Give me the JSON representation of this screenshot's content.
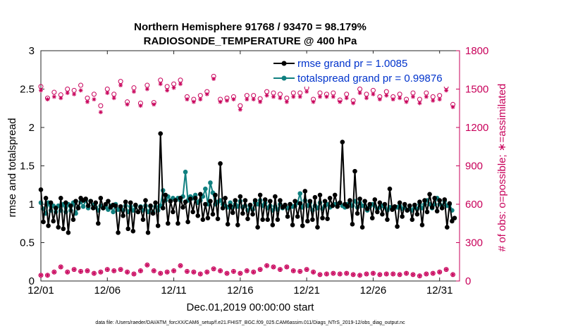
{
  "chart_data": {
    "type": "line",
    "title": [
      "Northern Hemisphere 91768 / 93470 = 98.179%",
      "RADIOSONDE_TEMPERATURE @ 400 hPa"
    ],
    "xlabel": "Dec.01,2019 00:00:00 start",
    "ylabel_left": "rmse and totalspread",
    "ylabel_right": "# of obs: o=possible; ∗=assimilated",
    "xlim": [
      0,
      31.5
    ],
    "ylim_left": [
      0,
      3
    ],
    "ylim_right": [
      0,
      1800
    ],
    "x_ticks": [
      0,
      5,
      10,
      15,
      20,
      25,
      30
    ],
    "x_tick_labels": [
      "12/01",
      "12/06",
      "12/11",
      "12/16",
      "12/21",
      "12/26",
      "12/31"
    ],
    "y_ticks_left": [
      0,
      0.5,
      1,
      1.5,
      2,
      2.5,
      3
    ],
    "y_tick_labels_left": [
      "0",
      "0.5",
      "1",
      "1.5",
      "2",
      "2.5",
      "3"
    ],
    "y_ticks_right": [
      0,
      300,
      600,
      900,
      1200,
      1500,
      1800
    ],
    "y_tick_labels_right": [
      "0",
      "300",
      "600",
      "900",
      "1200",
      "1500",
      "1800"
    ],
    "legend_position": "top-right",
    "colors": {
      "rmse": "#000000",
      "spread": "#108080",
      "obs": "#c8005a",
      "legend_text": "#0033cc",
      "axis": "#262626"
    },
    "series": [
      {
        "name": "rmse",
        "legend_label": "rmse grand pr = 1.0085",
        "axis": "left",
        "values": [
          1.19,
          0.77,
          1.08,
          0.72,
          1.02,
          0.78,
          0.95,
          0.7,
          1.08,
          0.68,
          1.02,
          0.63,
          0.98,
          0.8,
          1.04,
          0.95,
          1.08,
          1.05,
          1.07,
          0.98,
          1.04,
          0.95,
          1.02,
          0.75,
          1.08,
          0.95,
          1.0,
          1.04,
          0.96,
          0.99,
          0.98,
          0.63,
          0.97,
          0.85,
          1.03,
          0.68,
          1.02,
          0.65,
          0.99,
          0.9,
          0.96,
          0.8,
          1.05,
          0.63,
          0.98,
          0.88,
          1.02,
          0.72,
          1.92,
          0.95,
          1.12,
          0.75,
          1.04,
          0.9,
          1.05,
          0.75,
          1.08,
          0.96,
          1.03,
          0.77,
          1.07,
          0.9,
          1.08,
          0.85,
          1.13,
          0.8,
          1.0,
          0.82,
          1.04,
          0.87,
          1.12,
          0.81,
          1.53,
          0.95,
          1.08,
          0.74,
          0.98,
          0.89,
          1.05,
          0.73,
          1.1,
          0.88,
          1.05,
          0.81,
          0.99,
          0.87,
          1.05,
          0.7,
          1.12,
          0.8,
          1.06,
          0.8,
          1.04,
          0.73,
          1.1,
          0.8,
          1.05,
          0.96,
          0.99,
          0.84,
          1.0,
          0.73,
          1.04,
          0.84,
          1.01,
          0.72,
          1.17,
          0.78,
          1.04,
          0.8,
          1.09,
          0.7,
          1.12,
          0.82,
          1.04,
          0.81,
          1.08,
          0.98,
          1.12,
          0.97,
          1.02,
          1.81,
          1.0,
          0.97,
          1.05,
          0.74,
          1.43,
          0.88,
          1.07,
          0.7,
          1.04,
          0.94,
          1.0,
          0.82,
          1.06,
          0.9,
          1.02,
          0.87,
          1.0,
          0.8,
          1.2,
          0.93,
          0.97,
          0.71,
          1.02,
          0.84,
          1.0,
          0.92,
          0.98,
          0.8,
          0.99,
          0.87,
          1.03,
          0.73,
          1.05,
          0.9,
          1.13,
          0.96,
          1.08,
          0.91,
          1.05,
          0.95,
          1.06,
          0.7,
          1.01,
          0.78,
          0.82
        ]
      },
      {
        "name": "totalspread",
        "legend_label": "totalspread grand pr = 0.99876",
        "axis": "left",
        "values": [
          1.02,
          0.94,
          0.88,
          1.02,
          0.92,
          0.98,
          0.9,
          0.98,
          0.92,
          1.0,
          0.9,
          1.0,
          0.92,
          1.02,
          0.88,
          0.96,
          1.03,
          0.97,
          1.05,
          0.95,
          1.04,
          0.99,
          0.96,
          0.92,
          0.98,
          0.95,
          0.97,
          0.93,
          0.98,
          0.9,
          1.0,
          0.93,
          0.95,
          0.92,
          0.98,
          0.9,
          0.97,
          0.92,
          0.98,
          0.9,
          0.97,
          0.92,
          0.98,
          0.9,
          0.97,
          0.9,
          0.97,
          0.92,
          0.98,
          1.18,
          1.05,
          1.1,
          1.05,
          1.08,
          1.05,
          1.08,
          1.05,
          1.1,
          1.42,
          1.05,
          1.1,
          1.08,
          1.12,
          1.02,
          1.05,
          1.1,
          1.2,
          1.0,
          1.28,
          1.15,
          1.0,
          1.03,
          1.05,
          1.0,
          0.98,
          0.96,
          1.02,
          0.96,
          1.0,
          0.97,
          1.04,
          0.96,
          0.98,
          0.92,
          0.97,
          0.93,
          1.02,
          1.0,
          1.05,
          0.98,
          1.02,
          0.95,
          0.98,
          0.92,
          0.97,
          0.93,
          1.0,
          0.95,
          0.98,
          0.95,
          1.0,
          0.97,
          0.98,
          1.02,
          1.14,
          0.96,
          1.05,
          0.98,
          1.02,
          0.92,
          0.98,
          0.95,
          1.02,
          0.94,
          0.98,
          1.0,
          0.96,
          0.98,
          1.0,
          1.0,
          1.02,
          0.98,
          0.96,
          1.0,
          1.02,
          0.98,
          1.04,
          0.96,
          1.02,
          0.98,
          0.98,
          0.92,
          0.97,
          1.0,
          0.98,
          0.94,
          0.96,
          0.98,
          0.96,
          0.92,
          0.96,
          0.94,
          0.96,
          0.96,
          0.98,
          0.94,
          0.96,
          0.92,
          0.94,
          0.92,
          0.96,
          0.94,
          1.0,
          0.95,
          1.0,
          1.05,
          1.0,
          0.95,
          1.0,
          1.08,
          1.0,
          0.98,
          1.04,
          0.98,
          1.0,
          0.92
        ]
      },
      {
        "name": "obs_possible_high",
        "legend_label": "",
        "axis": "right",
        "marker": "o",
        "x": [
          0,
          0.5,
          1,
          1.5,
          2,
          2.5,
          3,
          3.5,
          4,
          4.5,
          5,
          5.5,
          6,
          6.5,
          7,
          7.5,
          8,
          8.5,
          9,
          9.5,
          10,
          10.5,
          11,
          11.5,
          12,
          12.5,
          13,
          13.5,
          14,
          14.5,
          15,
          15.5,
          16,
          16.5,
          17,
          17.5,
          18,
          18.5,
          19,
          19.5,
          20,
          20.5,
          21,
          21.5,
          22,
          22.5,
          23,
          23.5,
          24,
          24.5,
          25,
          25.5,
          26,
          26.5,
          27,
          27.5,
          28,
          28.5,
          29,
          29.5,
          30,
          30.5,
          31
        ],
        "values": [
          1520,
          1430,
          1475,
          1455,
          1500,
          1490,
          1530,
          1430,
          1460,
          1370,
          1500,
          1460,
          1560,
          1400,
          1510,
          1390,
          1530,
          1395,
          1570,
          1520,
          1540,
          1570,
          1440,
          1420,
          1450,
          1480,
          1600,
          1420,
          1430,
          1440,
          1370,
          1450,
          1450,
          1425,
          1480,
          1470,
          1460,
          1430,
          1470,
          1470,
          1510,
          1420,
          1470,
          1460,
          1470,
          1415,
          1460,
          1410,
          1500,
          1460,
          1490,
          1440,
          1480,
          1440,
          1460,
          1420,
          1470,
          1420,
          1470,
          1440,
          1450,
          1520,
          1380
        ]
      },
      {
        "name": "obs_assimilated_high",
        "legend_label": "",
        "axis": "right",
        "marker": "*",
        "x": [
          0,
          0.5,
          1,
          1.5,
          2,
          2.5,
          3,
          3.5,
          4,
          4.5,
          5,
          5.5,
          6,
          6.5,
          7,
          7.5,
          8,
          8.5,
          9,
          9.5,
          10,
          10.5,
          11,
          11.5,
          12,
          12.5,
          13,
          13.5,
          14,
          14.5,
          15,
          15.5,
          16,
          16.5,
          17,
          17.5,
          18,
          18.5,
          19,
          19.5,
          20,
          20.5,
          21,
          21.5,
          22,
          22.5,
          23,
          23.5,
          24,
          24.5,
          25,
          25.5,
          26,
          26.5,
          27,
          27.5,
          28,
          28.5,
          29,
          29.5,
          30,
          30.5,
          31
        ],
        "values": [
          1490,
          1420,
          1440,
          1430,
          1470,
          1460,
          1490,
          1400,
          1420,
          1320,
          1470,
          1430,
          1530,
          1380,
          1480,
          1370,
          1500,
          1380,
          1540,
          1490,
          1510,
          1540,
          1420,
          1400,
          1420,
          1460,
          1580,
          1400,
          1410,
          1420,
          1340,
          1420,
          1420,
          1400,
          1450,
          1440,
          1430,
          1400,
          1440,
          1440,
          1480,
          1400,
          1440,
          1440,
          1440,
          1400,
          1430,
          1390,
          1470,
          1430,
          1460,
          1420,
          1450,
          1420,
          1430,
          1400,
          1440,
          1390,
          1440,
          1410,
          1420,
          1490,
          1360
        ]
      },
      {
        "name": "obs_possible_low",
        "legend_label": "",
        "axis": "right",
        "marker": "o",
        "x": [
          0,
          0.5,
          1,
          1.5,
          2,
          2.5,
          3,
          3.5,
          4,
          4.5,
          5,
          5.5,
          6,
          6.5,
          7,
          7.5,
          8,
          8.5,
          9,
          9.5,
          10,
          10.5,
          11,
          11.5,
          12,
          12.5,
          13,
          13.5,
          14,
          14.5,
          15,
          15.5,
          16,
          16.5,
          17,
          17.5,
          18,
          18.5,
          19,
          19.5,
          20,
          20.5,
          21,
          21.5,
          22,
          22.5,
          23,
          23.5,
          24,
          24.5,
          25,
          25.5,
          26,
          26.5,
          27,
          27.5,
          28,
          28.5,
          29,
          29.5,
          30,
          30.5,
          31
        ],
        "values": [
          45,
          45,
          70,
          110,
          70,
          90,
          75,
          80,
          60,
          70,
          90,
          80,
          90,
          70,
          55,
          80,
          125,
          80,
          60,
          70,
          80,
          120,
          75,
          70,
          55,
          70,
          95,
          80,
          60,
          75,
          60,
          80,
          70,
          90,
          120,
          110,
          90,
          110,
          80,
          75,
          90,
          70,
          50,
          55,
          60,
          55,
          60,
          50,
          45,
          55,
          60,
          50,
          55,
          55,
          50,
          60,
          50,
          40,
          55,
          60,
          70,
          90,
          50
        ]
      },
      {
        "name": "obs_assimilated_low",
        "legend_label": "",
        "axis": "right",
        "marker": "*",
        "x": [
          0,
          0.5,
          1,
          1.5,
          2,
          2.5,
          3,
          3.5,
          4,
          4.5,
          5,
          5.5,
          6,
          6.5,
          7,
          7.5,
          8,
          8.5,
          9,
          9.5,
          10,
          10.5,
          11,
          11.5,
          12,
          12.5,
          13,
          13.5,
          14,
          14.5,
          15,
          15.5,
          16,
          16.5,
          17,
          17.5,
          18,
          18.5,
          19,
          19.5,
          20,
          20.5,
          21,
          21.5,
          22,
          22.5,
          23,
          23.5,
          24,
          24.5,
          25,
          25.5,
          26,
          26.5,
          27,
          27.5,
          28,
          28.5,
          29,
          29.5,
          30,
          30.5,
          31
        ],
        "values": [
          45,
          45,
          70,
          110,
          70,
          90,
          75,
          80,
          60,
          70,
          90,
          80,
          90,
          70,
          55,
          80,
          125,
          80,
          60,
          70,
          80,
          120,
          75,
          70,
          55,
          70,
          95,
          80,
          60,
          75,
          60,
          80,
          70,
          90,
          120,
          110,
          90,
          110,
          80,
          75,
          90,
          70,
          50,
          55,
          60,
          55,
          60,
          50,
          45,
          55,
          60,
          50,
          55,
          55,
          50,
          60,
          50,
          40,
          55,
          60,
          70,
          90,
          50
        ]
      }
    ],
    "footer": "data file: /Users/raeder/DAI/ATM_forcXX/CAM6_setup/f.e21.FHIST_BGC.f09_025.CAM6assim.011/Diags_NTrS_2019-12/obs_diag_output.nc"
  }
}
